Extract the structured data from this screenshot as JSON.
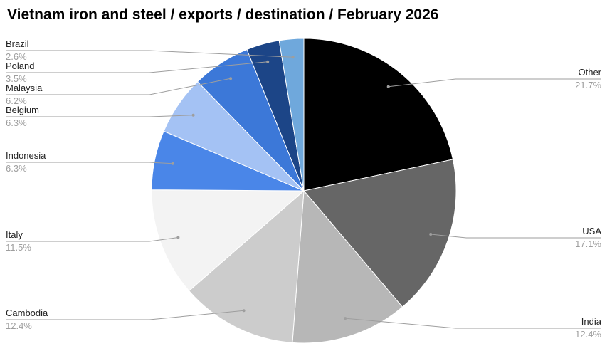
{
  "chart_data": {
    "type": "pie",
    "title": "Vietnam iron and steel / exports / destination / February 2026",
    "slices": [
      {
        "name": "Other",
        "value": 21.7,
        "label": "21.7%",
        "color": "#000000"
      },
      {
        "name": "USA",
        "value": 17.1,
        "label": "17.1%",
        "color": "#666666"
      },
      {
        "name": "India",
        "value": 12.4,
        "label": "12.4%",
        "color": "#b7b7b7"
      },
      {
        "name": "Cambodia",
        "value": 12.4,
        "label": "12.4%",
        "color": "#cccccc"
      },
      {
        "name": "Italy",
        "value": 11.5,
        "label": "11.5%",
        "color": "#f3f3f3"
      },
      {
        "name": "Indonesia",
        "value": 6.3,
        "label": "6.3%",
        "color": "#4a86e8"
      },
      {
        "name": "Belgium",
        "value": 6.3,
        "label": "6.3%",
        "color": "#a4c2f4"
      },
      {
        "name": "Malaysia",
        "value": 6.2,
        "label": "6.2%",
        "color": "#3c78d8"
      },
      {
        "name": "Poland",
        "value": 3.5,
        "label": "3.5%",
        "color": "#1c4587"
      },
      {
        "name": "Brazil",
        "value": 2.6,
        "label": "2.6%",
        "color": "#6fa8dc"
      }
    ]
  }
}
